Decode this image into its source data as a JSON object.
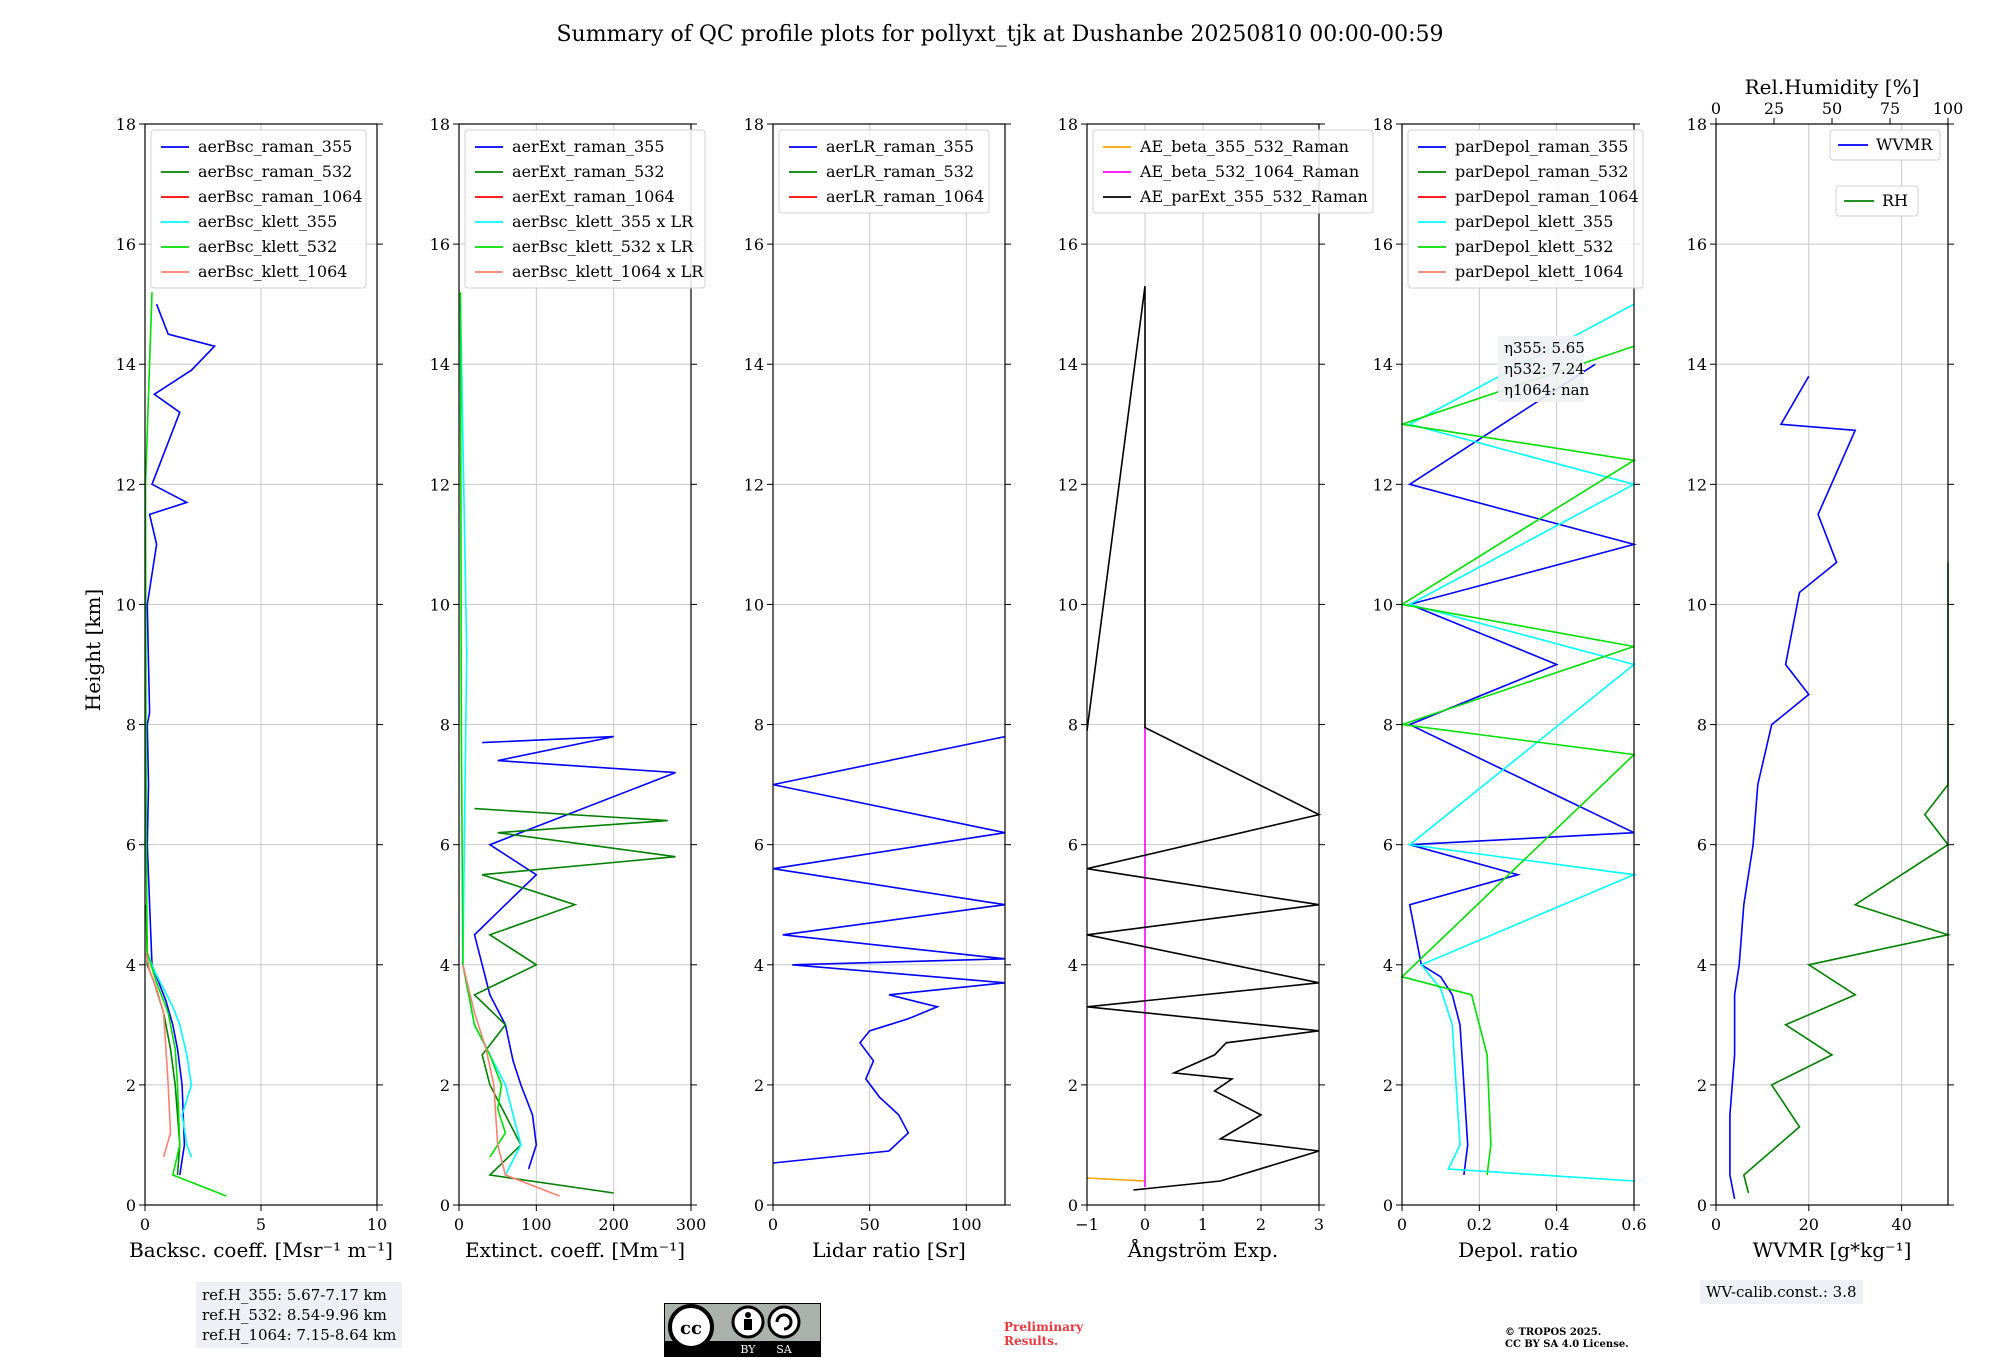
{
  "figure": {
    "title": "Summary of QC profile plots for pollyxt_tjk at Dushanbe 20250810 00:00-00:59",
    "ylabel": "Height [km]",
    "ref_heights": [
      "ref.H_355: 5.67-7.17 km",
      "ref.H_532: 8.54-9.96 km",
      "ref.H_1064: 7.15-8.64 km"
    ],
    "wv_calib": "WV-calib.const.: 3.8",
    "preliminary": [
      "Preliminary",
      "Results."
    ],
    "copyright": [
      "© TROPOS 2025.",
      "CC BY SA 4.0 License."
    ],
    "license_badge": {
      "icon": "cc-by-sa-icon",
      "labels": [
        "BY",
        "SA"
      ]
    },
    "eta_labels": [
      "η355: 5.65",
      "η532: 7.24",
      "η1064: nan"
    ]
  },
  "chart_data": [
    {
      "type": "line",
      "id": "bsc",
      "xlabel": "Backsc. coeff. [Msr⁻¹ m⁻¹]",
      "ylabel": "Height [km]",
      "xlim": [
        0,
        10
      ],
      "ylim": [
        0,
        18
      ],
      "xticks": [
        0,
        5,
        10
      ],
      "yticks": [
        0,
        2,
        4,
        6,
        8,
        10,
        12,
        14,
        16,
        18
      ],
      "grid": true,
      "legend": "top-left",
      "series": [
        {
          "name": "aerBsc_raman_355",
          "color": "#0000ff",
          "x": [
            1.5,
            1.7,
            1.6,
            1.4,
            1.2,
            0.9,
            0.6,
            0.3,
            0.2,
            0.1,
            0.15,
            0.1,
            0.2,
            0.15,
            0.1,
            0.5,
            0.2,
            1.8,
            0.3,
            0.8,
            1.5,
            0.4,
            2.0,
            3.0,
            1.0,
            0.5
          ],
          "y": [
            0.5,
            1.0,
            2.0,
            2.6,
            3.0,
            3.4,
            3.7,
            4.0,
            5.0,
            6.0,
            7.0,
            8.0,
            8.2,
            9.0,
            10.0,
            11.0,
            11.5,
            11.7,
            12.0,
            12.5,
            13.2,
            13.5,
            13.9,
            14.3,
            14.5,
            15.0
          ]
        },
        {
          "name": "aerBsc_raman_532",
          "color": "#008000",
          "x": [
            1.4,
            1.5,
            1.3,
            1.1,
            0.8,
            0.4,
            0.1,
            0.05
          ],
          "y": [
            0.5,
            1.0,
            2.0,
            2.6,
            3.2,
            3.7,
            4.0,
            5.0
          ]
        },
        {
          "name": "aerBsc_raman_1064",
          "color": "#ff0000",
          "x": [],
          "y": []
        },
        {
          "name": "aerBsc_klett_355",
          "color": "#00ffff",
          "x": [
            2.0,
            1.8,
            1.6,
            2.0,
            1.8,
            1.5,
            1.2,
            0.8,
            0.4,
            0.1
          ],
          "y": [
            0.8,
            1.0,
            1.5,
            2.0,
            2.5,
            3.0,
            3.3,
            3.6,
            3.9,
            4.2
          ]
        },
        {
          "name": "aerBsc_klett_532",
          "color": "#00e000",
          "x": [
            3.5,
            1.2,
            1.5,
            1.4,
            1.3,
            1.0,
            0.5,
            0.1,
            0.05,
            0.02,
            0.3
          ],
          "y": [
            0.15,
            0.5,
            1.0,
            2.0,
            2.6,
            3.2,
            3.7,
            4.2,
            6.0,
            12.0,
            15.2
          ]
        },
        {
          "name": "aerBsc_klett_1064",
          "color": "#fa8072",
          "x": [
            0.8,
            1.1,
            1.0,
            0.9,
            0.8,
            0.5,
            0.2,
            0.05
          ],
          "y": [
            0.8,
            1.2,
            2.0,
            2.6,
            3.2,
            3.6,
            3.9,
            4.2
          ]
        }
      ]
    },
    {
      "type": "line",
      "id": "ext",
      "xlabel": "Extinct. coeff. [Mm⁻¹]",
      "ylabel": "",
      "xlim": [
        0,
        300
      ],
      "ylim": [
        0,
        18
      ],
      "xticks": [
        0,
        100,
        200,
        300
      ],
      "yticks": [
        0,
        2,
        4,
        6,
        8,
        10,
        12,
        14,
        16,
        18
      ],
      "grid": true,
      "legend": "top-left",
      "series": [
        {
          "name": "aerExt_raman_355",
          "color": "#0000ff",
          "x": [
            90,
            100,
            95,
            80,
            70,
            60,
            40,
            30,
            20,
            60,
            100,
            40,
            280,
            50,
            200,
            30
          ],
          "y": [
            0.6,
            1.0,
            1.5,
            2.0,
            2.4,
            3.0,
            3.5,
            4.0,
            4.5,
            5.0,
            5.5,
            6.0,
            7.2,
            7.4,
            7.8,
            7.7
          ]
        },
        {
          "name": "aerExt_raman_532",
          "color": "#008000",
          "x": [
            200,
            40,
            80,
            60,
            40,
            30,
            60,
            20,
            100,
            40,
            150,
            30,
            280,
            50,
            270,
            20
          ],
          "y": [
            0.2,
            0.5,
            1.0,
            1.5,
            2.0,
            2.5,
            3.0,
            3.5,
            4.0,
            4.5,
            5.0,
            5.5,
            5.8,
            6.2,
            6.4,
            6.6
          ]
        },
        {
          "name": "aerExt_raman_1064",
          "color": "#ff0000",
          "x": [],
          "y": []
        },
        {
          "name": "aerBsc_klett_355 x LR",
          "color": "#00ffff",
          "x": [
            60,
            80,
            70,
            60,
            40,
            20,
            5,
            10,
            2
          ],
          "y": [
            0.5,
            1.0,
            1.5,
            2.0,
            2.5,
            3.0,
            4.0,
            9.2,
            15.0
          ]
        },
        {
          "name": "aerBsc_klett_532 x LR",
          "color": "#00e000",
          "x": [
            40,
            60,
            50,
            55,
            40,
            20,
            5,
            3,
            2
          ],
          "y": [
            0.8,
            1.2,
            1.6,
            2.0,
            2.5,
            3.0,
            4.0,
            8.0,
            15.2
          ]
        },
        {
          "name": "aerBsc_klett_1064 x LR",
          "color": "#fa8072",
          "x": [
            130,
            60,
            50,
            45,
            35,
            20,
            5
          ],
          "y": [
            0.15,
            0.5,
            1.0,
            2.0,
            2.6,
            3.2,
            4.0
          ]
        }
      ]
    },
    {
      "type": "line",
      "id": "lr",
      "xlabel": "Lidar ratio [Sr]",
      "ylabel": "",
      "xlim": [
        0,
        120
      ],
      "ylim": [
        0,
        18
      ],
      "xticks": [
        0,
        50,
        100
      ],
      "yticks": [
        0,
        2,
        4,
        6,
        8,
        10,
        12,
        14,
        16,
        18
      ],
      "grid": true,
      "legend": "top-left",
      "series": [
        {
          "name": "aerLR_raman_355",
          "color": "#0000ff",
          "x": [
            0,
            60,
            70,
            65,
            55,
            48,
            52,
            45,
            50,
            60,
            70,
            85,
            60,
            120,
            10,
            120,
            5,
            120,
            0,
            120,
            0,
            120
          ],
          "y": [
            0.7,
            0.9,
            1.2,
            1.5,
            1.8,
            2.1,
            2.4,
            2.7,
            2.9,
            3.0,
            3.1,
            3.3,
            3.5,
            3.7,
            4.0,
            4.1,
            4.5,
            5.0,
            5.6,
            6.2,
            7.0,
            7.8
          ]
        },
        {
          "name": "aerLR_raman_532",
          "color": "#008000",
          "x": [],
          "y": []
        },
        {
          "name": "aerLR_raman_1064",
          "color": "#ff0000",
          "x": [],
          "y": []
        }
      ]
    },
    {
      "type": "line",
      "id": "ae",
      "xlabel": "Ångström Exp.",
      "ylabel": "",
      "xlim": [
        -1,
        3
      ],
      "ylim": [
        0,
        18
      ],
      "xticks": [
        -1,
        0,
        1,
        2,
        3
      ],
      "yticks": [
        0,
        2,
        4,
        6,
        8,
        10,
        12,
        14,
        16,
        18
      ],
      "grid": true,
      "legend": "top-left",
      "series": [
        {
          "name": "AE_beta_355_532_Raman",
          "color": "#ffa500",
          "x": [
            -1,
            0.0
          ],
          "y": [
            0.45,
            0.4
          ]
        },
        {
          "name": "AE_beta_532_1064_Raman",
          "color": "#ff00ff",
          "x": [
            0,
            0
          ],
          "y": [
            0.3,
            8.0
          ]
        },
        {
          "name": "AE_parExt_355_532_Raman",
          "color": "#000000",
          "x": [
            -0.2,
            1.3,
            3.0,
            1.3,
            2.0,
            1.2,
            1.5,
            0.5,
            1.2,
            1.4,
            3.0,
            -1,
            3,
            -1,
            3,
            -1,
            3,
            0,
            0,
            -1
          ],
          "y": [
            0.25,
            0.4,
            0.9,
            1.1,
            1.5,
            1.9,
            2.1,
            2.2,
            2.5,
            2.7,
            2.9,
            3.3,
            3.7,
            4.5,
            5.0,
            5.6,
            6.5,
            7.95,
            15.3,
            7.9
          ]
        }
      ]
    },
    {
      "type": "line",
      "id": "depol",
      "xlabel": "Depol. ratio",
      "ylabel": "",
      "xlim": [
        0,
        0.6
      ],
      "ylim": [
        0,
        18
      ],
      "xticks": [
        0.0,
        0.2,
        0.4,
        0.6
      ],
      "yticks": [
        0,
        2,
        4,
        6,
        8,
        10,
        12,
        14,
        16,
        18
      ],
      "grid": true,
      "legend": "top-left",
      "series": [
        {
          "name": "parDepol_raman_355",
          "color": "#0000ff",
          "x": [
            0.16,
            0.17,
            0.16,
            0.15,
            0.13,
            0.1,
            0.05,
            0.02,
            0.3,
            0.02,
            0.6,
            0.02,
            0.4,
            0.02,
            0.6,
            0.02,
            0.5
          ],
          "y": [
            0.5,
            1.0,
            2.0,
            3.0,
            3.5,
            3.8,
            4.0,
            5.0,
            5.5,
            6.0,
            6.2,
            8.0,
            9.0,
            10.0,
            11.0,
            12.0,
            14.0
          ]
        },
        {
          "name": "parDepol_raman_532",
          "color": "#008000",
          "x": [],
          "y": []
        },
        {
          "name": "parDepol_raman_1064",
          "color": "#ff0000",
          "x": [],
          "y": []
        },
        {
          "name": "parDepol_klett_355",
          "color": "#00ffff",
          "x": [
            0.6,
            0.12,
            0.15,
            0.14,
            0.13,
            0.1,
            0.05,
            0.6,
            0.02,
            0.6,
            0.02,
            0.6,
            0.02,
            0.6
          ],
          "y": [
            0.4,
            0.6,
            1.0,
            2.0,
            3.0,
            3.6,
            4.0,
            5.5,
            6.0,
            9.0,
            10.0,
            12.0,
            13.0,
            15.0
          ]
        },
        {
          "name": "parDepol_klett_532",
          "color": "#00e000",
          "x": [
            0.22,
            0.23,
            0.22,
            0.18,
            0.0,
            0.6,
            0.0,
            0.6,
            0.0,
            0.6,
            0.0,
            0.6
          ],
          "y": [
            0.5,
            1.0,
            2.5,
            3.5,
            3.8,
            7.5,
            8.0,
            9.3,
            10.0,
            12.4,
            13.0,
            14.3
          ]
        },
        {
          "name": "parDepol_klett_1064",
          "color": "#fa8072",
          "x": [],
          "y": []
        }
      ]
    },
    {
      "type": "line",
      "id": "wv",
      "xlabel": "WVMR [g*kg⁻¹]",
      "ylabel": "",
      "x2label": "Rel.Humidity [%]",
      "xlim": [
        0,
        50
      ],
      "x2lim": [
        0,
        100
      ],
      "ylim": [
        0,
        18
      ],
      "xticks": [
        0,
        20,
        40
      ],
      "x2ticks": [
        0,
        25,
        50,
        75,
        100
      ],
      "yticks": [
        0,
        2,
        4,
        6,
        8,
        10,
        12,
        14,
        16,
        18
      ],
      "grid": true,
      "legend": "top-right",
      "series": [
        {
          "name": "WVMR",
          "color": "#0000ff",
          "x": [
            4,
            3,
            3,
            4,
            4,
            5,
            6,
            8,
            9,
            12,
            20,
            15,
            18,
            26,
            22,
            30,
            14,
            20
          ],
          "y": [
            0.1,
            0.5,
            1.5,
            2.5,
            3.5,
            4.0,
            5.0,
            6.0,
            7.0,
            8.0,
            8.5,
            9.0,
            10.2,
            10.7,
            11.5,
            12.9,
            13.0,
            13.8
          ]
        },
        {
          "name": "RH",
          "color": "#008000",
          "x": [
            7,
            6,
            18,
            12,
            25,
            15,
            30,
            20,
            55,
            30,
            100,
            45,
            100,
            60,
            100,
            50,
            100
          ],
          "y": [
            0.2,
            0.5,
            1.3,
            2.0,
            2.5,
            3.0,
            3.5,
            4.0,
            4.5,
            5.0,
            6.0,
            6.5,
            7.0,
            8.0,
            9.5,
            10.0,
            10.7
          ]
        }
      ]
    }
  ]
}
